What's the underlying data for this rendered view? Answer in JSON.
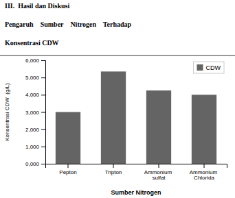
{
  "chart_data": {
    "type": "bar",
    "title": [
      "III.  Hasil dan Diskusi",
      "Pengaruh    Sumber    Nitrogen    Terhadap",
      "Konsentrasi CDW"
    ],
    "categories": [
      "Pepton",
      "Tripton",
      "Ammonium\nsulfat",
      "Ammonium\nChlorida"
    ],
    "series": [
      {
        "name": "CDW",
        "color": "#646464",
        "values": [
          3.0,
          5.35,
          4.25,
          4.0
        ]
      }
    ],
    "x_label": "Sumber Nitrogen",
    "y_label": "Konsentrasi CDW  (g/L)",
    "ylim": [
      0,
      6.0
    ],
    "yticks": [
      {
        "value": 0.0,
        "label": "0,000"
      },
      {
        "value": 1.0,
        "label": "1,000"
      },
      {
        "value": 2.0,
        "label": "2,000"
      },
      {
        "value": 3.0,
        "label": "3,000"
      },
      {
        "value": 4.0,
        "label": "4,000"
      },
      {
        "value": 5.0,
        "label": "5,000"
      },
      {
        "value": 6.0,
        "label": "6,000"
      }
    ],
    "legend": "upper right",
    "grid": false
  }
}
